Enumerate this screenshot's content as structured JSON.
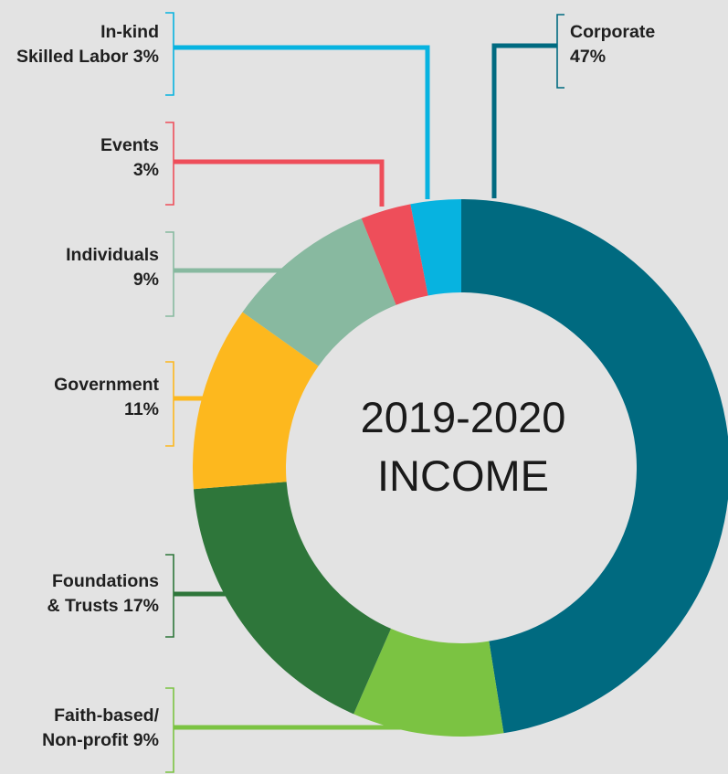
{
  "chart_data": {
    "type": "pie",
    "title_line1": "2019-2020",
    "title_line2": "INCOME",
    "slices": [
      {
        "name": "Corporate",
        "value": 47,
        "label_line1": "Corporate",
        "label_line2": "47%",
        "color": "#006a80"
      },
      {
        "name": "Faith-based/ Non-profit",
        "value": 9,
        "label_line1": "Faith-based/",
        "label_line2": "Non-profit 9%",
        "color": "#7bc342"
      },
      {
        "name": "Foundations & Trusts",
        "value": 17,
        "label_line1": "Foundations",
        "label_line2": "& Trusts 17%",
        "color": "#2e763a"
      },
      {
        "name": "Government",
        "value": 11,
        "label_line1": "Government",
        "label_line2": "11%",
        "color": "#fdb81e"
      },
      {
        "name": "Individuals",
        "value": 9,
        "label_line1": "Individuals",
        "label_line2": "9%",
        "color": "#88b9a0"
      },
      {
        "name": "Events",
        "value": 3,
        "label_line1": "Events",
        "label_line2": "3%",
        "color": "#ee4e5a"
      },
      {
        "name": "In-kind Skilled Labor",
        "value": 3,
        "label_line1": "In-kind",
        "label_line2": "Skilled Labor 3%",
        "color": "#07b3e0"
      }
    ]
  }
}
